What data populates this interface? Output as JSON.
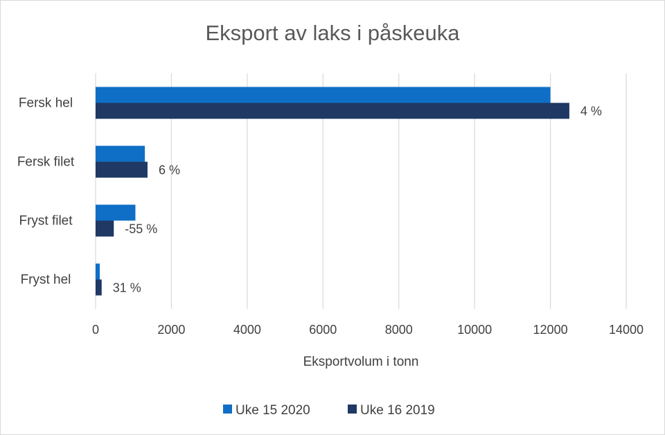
{
  "chart_data": {
    "type": "bar",
    "orientation": "horizontal",
    "title": "Eksport av laks i påskeuka",
    "xlabel": "Eksportvolum i tonn",
    "ylabel": "",
    "xlim": [
      0,
      14000
    ],
    "x_ticks": [
      "0",
      "2000",
      "4000",
      "6000",
      "8000",
      "10000",
      "12000",
      "14000"
    ],
    "categories": [
      "Fersk hel",
      "Fersk filet",
      "Fryst filet",
      "Fryst hel"
    ],
    "series": [
      {
        "name": "Uke 15 2020",
        "color": "#0f6fc6",
        "values": [
          12000,
          1300,
          1050,
          110
        ]
      },
      {
        "name": "Uke 16 2019",
        "color": "#1f3864",
        "values": [
          12500,
          1370,
          480,
          160
        ]
      }
    ],
    "data_labels": [
      "4 %",
      "6 %",
      "-55 %",
      "31 %"
    ],
    "grid": true,
    "legend_position": "bottom"
  }
}
